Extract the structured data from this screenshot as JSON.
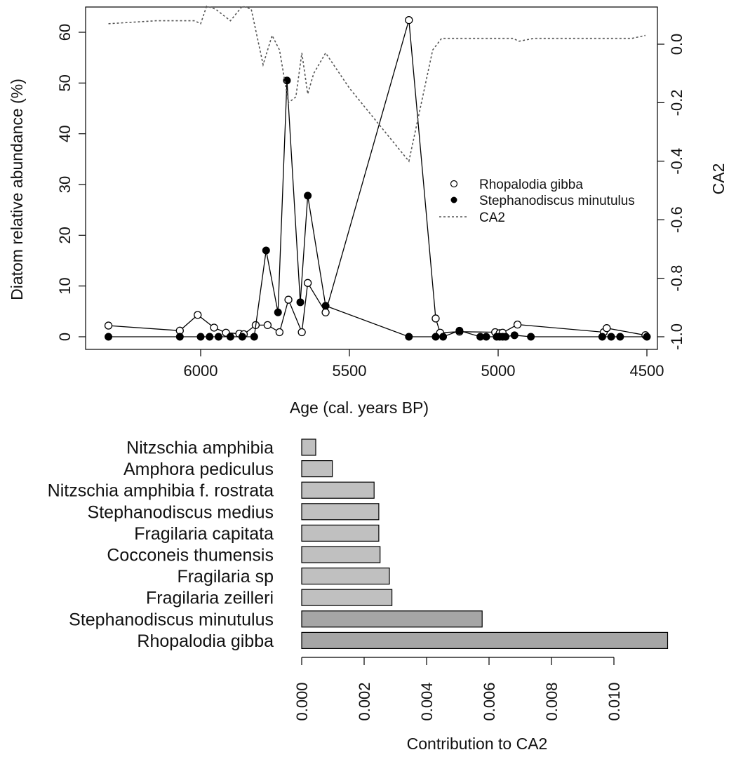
{
  "chart_data": [
    {
      "type": "line",
      "xlabel": "Age (cal. years BP)",
      "ylabel": "Diatom relative abundance (%)",
      "y2label": "CA2",
      "xlim": [
        6300,
        4450
      ],
      "ylim": [
        -2,
        65
      ],
      "y2lim": [
        -1.05,
        0.15
      ],
      "x_axis_reversed": true,
      "grid": false,
      "legend_position": "right",
      "xticks": [
        "6000",
        "5500",
        "5000",
        "4500"
      ],
      "yticks": [
        "0",
        "10",
        "20",
        "30",
        "40",
        "50",
        "60"
      ],
      "y2ticks": [
        "-1.0",
        "-0.8",
        "-0.6",
        "-0.4",
        "-0.2",
        "0.0"
      ],
      "legend": [
        {
          "label": "Rhopalodia gibba",
          "marker": "open-circle"
        },
        {
          "label": "Stephanodiscus minutulus",
          "marker": "filled-circle"
        },
        {
          "label": "CA2",
          "marker": "dotted-line"
        }
      ],
      "series": [
        {
          "name": "Rhopalodia gibba",
          "axis": "left",
          "style": "line+open-circle",
          "x": [
            6310,
            6070,
            6010,
            5955,
            5915,
            5870,
            5855,
            5815,
            5775,
            5735,
            5705,
            5660,
            5640,
            5580,
            5300,
            5210,
            5195,
            5130,
            5010,
            4995,
            4985,
            4935,
            4645,
            4635,
            4505
          ],
          "y": [
            2.2,
            1.2,
            4.3,
            1.8,
            0.8,
            0.6,
            0.5,
            2.3,
            2.3,
            0.9,
            7.3,
            0.9,
            10.6,
            4.8,
            62.4,
            3.6,
            0.8,
            1.0,
            0.9,
            0.7,
            0.8,
            2.4,
            0.9,
            1.7,
            0.3
          ]
        },
        {
          "name": "Stephanodiscus minutulus",
          "axis": "left",
          "style": "line+filled-circle",
          "x": [
            6310,
            6070,
            6000,
            5970,
            5940,
            5900,
            5860,
            5820,
            5780,
            5740,
            5710,
            5665,
            5640,
            5580,
            5300,
            5210,
            5185,
            5130,
            5060,
            5040,
            5005,
            4995,
            4985,
            4975,
            4945,
            4890,
            4650,
            4620,
            4590,
            4500
          ],
          "y": [
            0,
            0,
            0,
            0,
            0,
            0,
            0,
            0,
            17,
            4.8,
            50.5,
            6.8,
            27.8,
            6.1,
            0,
            0,
            0,
            1.2,
            0,
            0,
            0,
            0,
            0,
            0,
            0.3,
            0,
            0,
            0,
            0,
            0
          ]
        },
        {
          "name": "CA2",
          "axis": "right",
          "style": "dotted-line",
          "x": [
            6310,
            6150,
            6070,
            6020,
            6000,
            5980,
            5950,
            5900,
            5860,
            5830,
            5790,
            5760,
            5735,
            5705,
            5680,
            5660,
            5640,
            5620,
            5580,
            5500,
            5300,
            5220,
            5190,
            5100,
            4950,
            4930,
            4880,
            4800,
            4700,
            4620,
            4550,
            4505
          ],
          "y": [
            0.07,
            0.08,
            0.08,
            0.08,
            0.07,
            0.13,
            0.12,
            0.08,
            0.13,
            0.12,
            -0.07,
            0.03,
            -0.02,
            -0.2,
            -0.18,
            -0.03,
            -0.17,
            -0.1,
            -0.03,
            -0.15,
            -0.4,
            -0.02,
            0.02,
            0.02,
            0.02,
            0.01,
            0.02,
            0.02,
            0.02,
            0.02,
            0.02,
            0.03
          ]
        }
      ]
    },
    {
      "type": "bar",
      "orientation": "horizontal",
      "xlabel": "Contribution to CA2",
      "xlim": [
        0,
        0.0118
      ],
      "xticks": [
        "0.000",
        "0.002",
        "0.004",
        "0.006",
        "0.008",
        "0.010"
      ],
      "grid": false,
      "categories": [
        "Nitzschia amphibia",
        "Amphora pediculus",
        "Nitzschia amphibia f. rostrata",
        "Stephanodiscus medius",
        "Fragilaria capitata",
        "Cocconeis thumensis",
        "Fragilaria sp",
        "Fragilaria zeilleri",
        "Stephanodiscus minutulus",
        "Rhopalodia gibba"
      ],
      "values": [
        0.00045,
        0.00098,
        0.00232,
        0.00247,
        0.00247,
        0.00251,
        0.00281,
        0.00289,
        0.00578,
        0.01172
      ],
      "colors": [
        "#c0c0c0",
        "#c0c0c0",
        "#c0c0c0",
        "#c0c0c0",
        "#c0c0c0",
        "#c0c0c0",
        "#c0c0c0",
        "#c0c0c0",
        "#a6a6a6",
        "#a6a6a6"
      ]
    }
  ]
}
